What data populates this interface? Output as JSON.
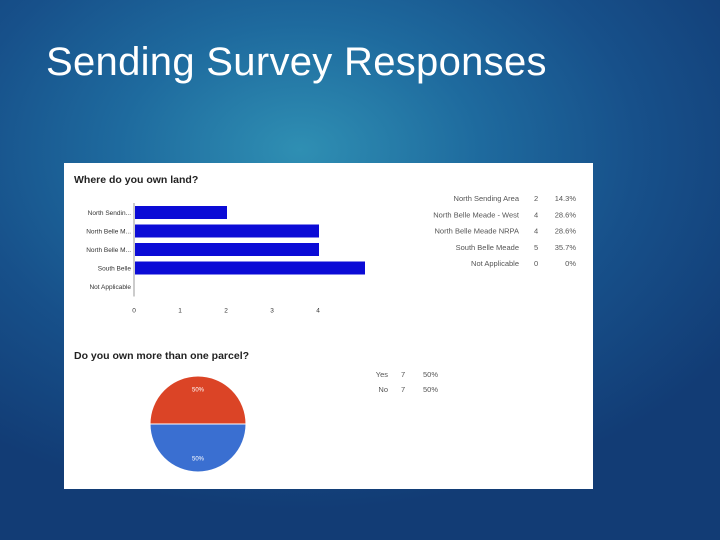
{
  "slide": {
    "title": "Sending Survey Responses"
  },
  "chart_data": [
    {
      "type": "bar",
      "orientation": "horizontal",
      "title": "Where do you own land?",
      "categories": [
        "North Sendin...",
        "North Belle M...",
        "North Belle M...",
        "South Belle",
        "Not Applicable"
      ],
      "values": [
        2,
        4,
        4,
        5,
        0
      ],
      "xlim": [
        0,
        5
      ],
      "xticks": [
        "0",
        "1",
        "2",
        "3",
        "4"
      ],
      "bar_color": "#0b0bd6",
      "legend_table": [
        {
          "label": "North Sending Area",
          "count": "2",
          "percent": "14.3%"
        },
        {
          "label": "North Belle Meade - West",
          "count": "4",
          "percent": "28.6%"
        },
        {
          "label": "North Belle Meade NRPA",
          "count": "4",
          "percent": "28.6%"
        },
        {
          "label": "South Belle Meade",
          "count": "5",
          "percent": "35.7%"
        },
        {
          "label": "Not Applicable",
          "count": "0",
          "percent": "0%"
        }
      ]
    },
    {
      "type": "pie",
      "title": "Do you own more than one parcel?",
      "slices": [
        {
          "label": "Yes",
          "count": "7",
          "percent": "50%",
          "value": 7,
          "color": "#db4426"
        },
        {
          "label": "No",
          "count": "7",
          "percent": "50%",
          "value": 7,
          "color": "#3a6fd1"
        }
      ]
    }
  ]
}
